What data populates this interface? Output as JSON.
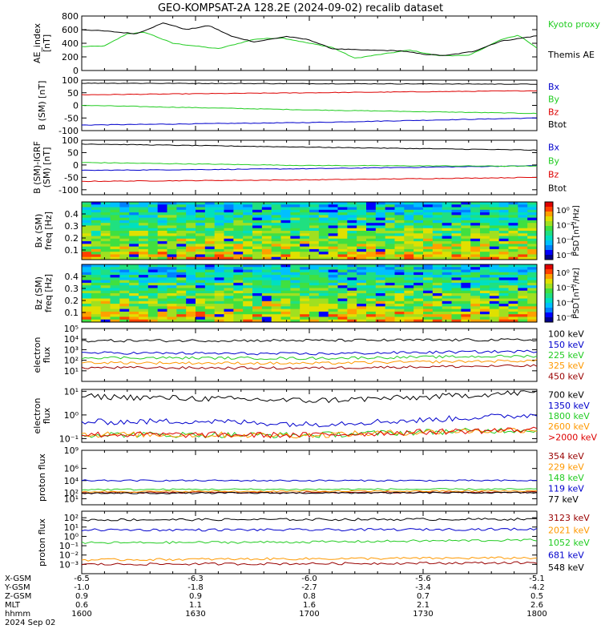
{
  "title": "GEO-KOMPSAT-2A 128.2E (2024-09-02) recalib dataset",
  "chart_data": [
    {
      "type": "line",
      "id": "ae",
      "ylabel": "AE_index [nT]",
      "ylim": [
        0,
        800
      ],
      "yticks": [
        0,
        200,
        400,
        600,
        800
      ],
      "scale": "linear",
      "series": [
        {
          "name": "Kyoto proxy AE",
          "color": "#22cc22",
          "keypoints": [
            [
              0,
              350
            ],
            [
              0.05,
              360
            ],
            [
              0.1,
              540
            ],
            [
              0.14,
              560
            ],
            [
              0.2,
              400
            ],
            [
              0.3,
              320
            ],
            [
              0.38,
              460
            ],
            [
              0.44,
              480
            ],
            [
              0.5,
              400
            ],
            [
              0.55,
              340
            ],
            [
              0.6,
              180
            ],
            [
              0.65,
              230
            ],
            [
              0.72,
              300
            ],
            [
              0.78,
              220
            ],
            [
              0.85,
              220
            ],
            [
              0.92,
              450
            ],
            [
              0.96,
              520
            ],
            [
              1,
              330
            ]
          ]
        },
        {
          "name": "Themis AE",
          "color": "#000000",
          "keypoints": [
            [
              0,
              600
            ],
            [
              0.05,
              580
            ],
            [
              0.12,
              540
            ],
            [
              0.18,
              700
            ],
            [
              0.23,
              600
            ],
            [
              0.28,
              660
            ],
            [
              0.33,
              500
            ],
            [
              0.38,
              420
            ],
            [
              0.45,
              500
            ],
            [
              0.5,
              450
            ],
            [
              0.55,
              320
            ],
            [
              0.62,
              300
            ],
            [
              0.7,
              290
            ],
            [
              0.75,
              240
            ],
            [
              0.8,
              220
            ],
            [
              0.86,
              280
            ],
            [
              0.92,
              430
            ],
            [
              1,
              510
            ]
          ]
        }
      ]
    },
    {
      "type": "line",
      "id": "bsm",
      "ylabel": "B (SM) [nT]",
      "ylim": [
        -100,
        100
      ],
      "yticks": [
        -100,
        -50,
        0,
        50,
        100
      ],
      "scale": "linear",
      "series": [
        {
          "name": "Bx",
          "color": "#0000cc",
          "keypoints": [
            [
              0,
              -78
            ],
            [
              0.5,
              -68
            ],
            [
              1,
              -50
            ]
          ]
        },
        {
          "name": "By",
          "color": "#22cc22",
          "keypoints": [
            [
              0,
              0
            ],
            [
              0.5,
              -18
            ],
            [
              1,
              -32
            ]
          ]
        },
        {
          "name": "Bz",
          "color": "#dd0000",
          "keypoints": [
            [
              0,
              42
            ],
            [
              0.5,
              50
            ],
            [
              1,
              58
            ]
          ]
        },
        {
          "name": "Btot",
          "color": "#000000",
          "keypoints": [
            [
              0,
              88
            ],
            [
              0.5,
              86
            ],
            [
              1,
              84
            ]
          ]
        }
      ]
    },
    {
      "type": "line",
      "id": "bgrf",
      "ylabel": "B (SM)-IGRF (SM) [nT]",
      "ylim": [
        -120,
        100
      ],
      "yticks": [
        -100,
        -50,
        0,
        50,
        100
      ],
      "scale": "linear",
      "series": [
        {
          "name": "Bx",
          "color": "#0000cc",
          "keypoints": [
            [
              0,
              -22
            ],
            [
              0.5,
              -15
            ],
            [
              1,
              -3
            ]
          ]
        },
        {
          "name": "By",
          "color": "#22cc22",
          "keypoints": [
            [
              0,
              10
            ],
            [
              0.5,
              -2
            ],
            [
              1,
              -5
            ]
          ]
        },
        {
          "name": "Bz",
          "color": "#dd0000",
          "keypoints": [
            [
              0,
              -66
            ],
            [
              0.5,
              -60
            ],
            [
              1,
              -50
            ]
          ]
        },
        {
          "name": "Btot",
          "color": "#000000",
          "keypoints": [
            [
              0,
              85
            ],
            [
              0.5,
              72
            ],
            [
              1,
              60
            ]
          ]
        }
      ]
    },
    {
      "type": "heatmap",
      "id": "bxpsd",
      "ylabel": "Bx (SM) freq [Hz]",
      "ylim": [
        0.02,
        0.5
      ],
      "yticks": [
        0.1,
        0.2,
        0.3,
        0.4
      ],
      "colorbar_label": "PSD [nT²/Hz]",
      "colorbar_ticks": [
        "10⁰",
        "10⁻²",
        "10⁻⁴",
        "10⁻⁶"
      ]
    },
    {
      "type": "heatmap",
      "id": "bzpsd",
      "ylabel": "Bz (SM) freq [Hz]",
      "ylim": [
        0.02,
        0.5
      ],
      "yticks": [
        0.1,
        0.2,
        0.3,
        0.4
      ],
      "colorbar_label": "PSD [nT²/Hz]",
      "colorbar_ticks": [
        "10⁰",
        "10⁻²",
        "10⁻⁴",
        "10⁻⁶"
      ]
    },
    {
      "type": "line",
      "id": "eflux1",
      "ylabel": "electron flux",
      "scale": "log",
      "ylim": [
        1,
        100000
      ],
      "ytick_exponents": [
        1,
        2,
        3,
        4,
        5
      ],
      "series": [
        {
          "name": "100 keV",
          "color": "#000000",
          "keypoints": [
            [
              0,
              7000
            ],
            [
              0.5,
              7500
            ],
            [
              1,
              8500
            ]
          ]
        },
        {
          "name": "150 keV",
          "color": "#0000cc",
          "keypoints": [
            [
              0,
              500
            ],
            [
              0.5,
              400
            ],
            [
              1,
              700
            ]
          ]
        },
        {
          "name": "225 keV",
          "color": "#22cc22",
          "keypoints": [
            [
              0,
              180
            ],
            [
              0.5,
              150
            ],
            [
              1,
              250
            ]
          ]
        },
        {
          "name": "325 keV",
          "color": "#ff9900",
          "keypoints": [
            [
              0,
              60
            ],
            [
              0.5,
              50
            ],
            [
              1,
              90
            ]
          ]
        },
        {
          "name": "450 keV",
          "color": "#990000",
          "keypoints": [
            [
              0,
              20
            ],
            [
              0.5,
              18
            ],
            [
              1,
              30
            ]
          ]
        }
      ]
    },
    {
      "type": "line",
      "id": "eflux2",
      "ylabel": "electron flux",
      "scale": "log",
      "ylim": [
        0.07,
        12
      ],
      "ytick_exponents": [
        -1,
        0,
        1
      ],
      "series": [
        {
          "name": "700 keV",
          "color": "#000000",
          "keypoints": [
            [
              0,
              6
            ],
            [
              0.25,
              5
            ],
            [
              0.5,
              4
            ],
            [
              0.75,
              5.5
            ],
            [
              1,
              9
            ]
          ]
        },
        {
          "name": "1350 keV",
          "color": "#0000cc",
          "keypoints": [
            [
              0,
              0.5
            ],
            [
              0.25,
              0.55
            ],
            [
              0.5,
              0.4
            ],
            [
              0.75,
              0.6
            ],
            [
              1,
              1.0
            ]
          ]
        },
        {
          "name": "1800 keV",
          "color": "#22cc22",
          "keypoints": [
            [
              0,
              0.15
            ],
            [
              0.5,
              0.14
            ],
            [
              1,
              0.24
            ]
          ]
        },
        {
          "name": "2600 keV",
          "color": "#ff9900",
          "keypoints": [
            [
              0,
              0.15
            ],
            [
              0.5,
              0.14
            ],
            [
              1,
              0.24
            ]
          ]
        },
        {
          "name": ">2000 keV",
          "color": "#dd0000",
          "keypoints": [
            [
              0,
              0.15
            ],
            [
              0.5,
              0.14
            ],
            [
              1,
              0.24
            ]
          ]
        }
      ]
    },
    {
      "type": "line",
      "id": "pflux1",
      "ylabel": "proton flux",
      "scale": "log",
      "ylim": [
        1,
        1000000000
      ],
      "ytick_exponents": [
        1,
        2,
        4,
        6,
        9
      ],
      "ytick_labels": [
        "10¹",
        "10²",
        "10⁴",
        "10⁶",
        "10⁹"
      ],
      "series": [
        {
          "name": "354 keV",
          "color": "#990000",
          "keypoints": [
            [
              0,
              100
            ],
            [
              0.5,
              110
            ],
            [
              1,
              120
            ]
          ]
        },
        {
          "name": "229 keV",
          "color": "#ff9900",
          "keypoints": [
            [
              0,
              150
            ],
            [
              0.5,
              170
            ],
            [
              1,
              190
            ]
          ]
        },
        {
          "name": "148 keV",
          "color": "#22cc22",
          "keypoints": [
            [
              0,
              330
            ],
            [
              0.5,
              360
            ],
            [
              1,
              380
            ]
          ]
        },
        {
          "name": "119 keV",
          "color": "#0000cc",
          "keypoints": [
            [
              0,
              10000
            ],
            [
              0.5,
              10000
            ],
            [
              1,
              10000
            ]
          ]
        },
        {
          "name": "77 keV",
          "color": "#000000",
          "keypoints": [
            [
              0,
              80
            ],
            [
              0.5,
              90
            ],
            [
              1,
              100
            ]
          ]
        }
      ]
    },
    {
      "type": "line",
      "id": "pflux2",
      "ylabel": "proton flux",
      "scale": "log",
      "ylim": [
        0.0001,
        500
      ],
      "ytick_exponents": [
        -3,
        -2,
        -1,
        0,
        1,
        2
      ],
      "series": [
        {
          "name": "3123 keV",
          "color": "#990000",
          "keypoints": [
            [
              0,
              0.001
            ],
            [
              0.5,
              0.0012
            ],
            [
              1,
              0.0015
            ]
          ]
        },
        {
          "name": "2021 keV",
          "color": "#ff9900",
          "keypoints": [
            [
              0,
              0.003
            ],
            [
              0.5,
              0.004
            ],
            [
              1,
              0.005
            ]
          ]
        },
        {
          "name": "1052 keV",
          "color": "#22cc22",
          "keypoints": [
            [
              0,
              0.2
            ],
            [
              0.5,
              0.25
            ],
            [
              1,
              0.4
            ]
          ]
        },
        {
          "name": "681 keV",
          "color": "#0000cc",
          "keypoints": [
            [
              0,
              5
            ],
            [
              0.5,
              5
            ],
            [
              1,
              6
            ]
          ]
        },
        {
          "name": "548 keV",
          "color": "#000000",
          "keypoints": [
            [
              0,
              60
            ],
            [
              0.5,
              65
            ],
            [
              1,
              70
            ]
          ]
        }
      ]
    }
  ],
  "xaxis": {
    "row_labels": [
      "X-GSM",
      "Y-GSM",
      "Z-GSM",
      "MLT",
      "hhmm",
      "2024 Sep 02"
    ],
    "columns": [
      [
        "-6.5",
        "-1.0",
        "0.9",
        "0.6",
        "1600"
      ],
      [
        "-6.3",
        "-1.8",
        "0.9",
        "1.1",
        "1630"
      ],
      [
        "-6.0",
        "-2.7",
        "0.8",
        "1.6",
        "1700"
      ],
      [
        "-5.6",
        "-3.4",
        "0.7",
        "2.1",
        "1730"
      ],
      [
        "-5.1",
        "-4.2",
        "0.5",
        "2.6",
        "1800"
      ]
    ]
  }
}
